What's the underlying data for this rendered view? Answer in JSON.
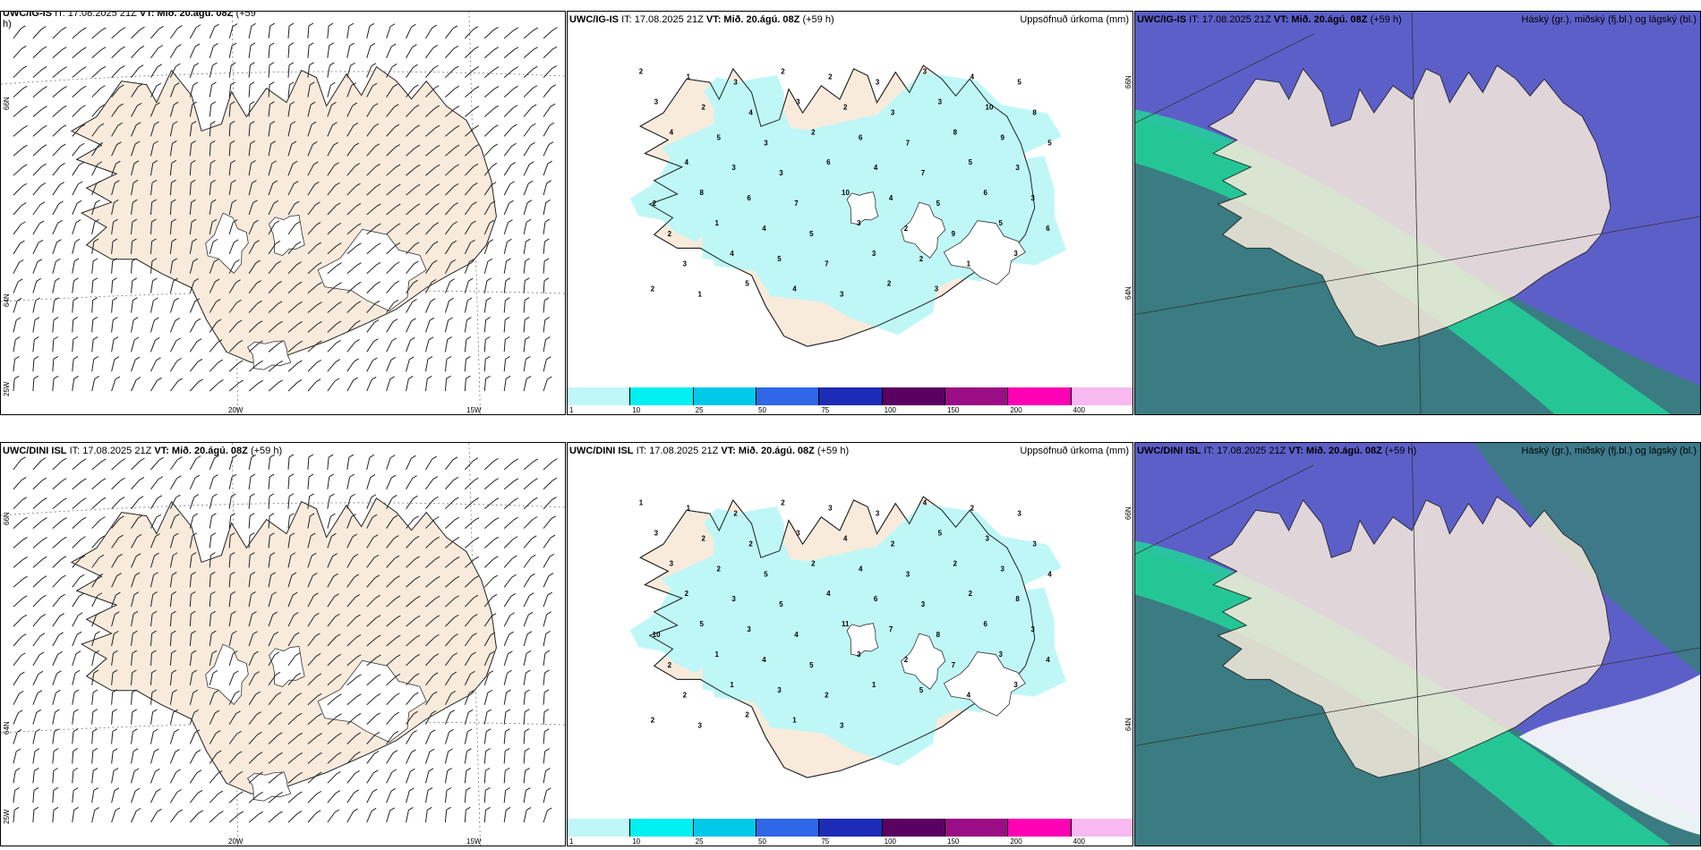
{
  "row1": {
    "wind": {
      "title_model": "UWC/IG-IS",
      "title_rest": "IT: 17.08.2025 21Z",
      "title_vt_label": "VT: Mið. 20.ágú. 08Z",
      "title_lead": "(+59",
      "title_lead2": "h)",
      "lat_66": "66N",
      "lat_64": "64N",
      "lon_25": "25W",
      "lon_20": "20W",
      "lon_15": "15W"
    },
    "precip": {
      "title_model": "UWC/IG-IS",
      "title_rest": "IT: 17.08.2025 21Z",
      "title_vt_label": "VT: Mið. 20.ágú. 08Z",
      "title_lead": "(+59 h)",
      "right_label": "Uppsöfnuð úrkoma (mm)",
      "lat_66": "66N",
      "lat_64": "64N",
      "colorbar": [
        "1",
        "10",
        "25",
        "50",
        "75",
        "100",
        "150",
        "200",
        "400"
      ]
    },
    "cloud": {
      "title_model": "UWC/IG-IS",
      "title_rest": "IT: 17.08.2025 21Z",
      "title_vt_label": "VT: Mið. 20.ágú. 08Z",
      "title_lead": "(+59 h)",
      "right_label": "Háský (gr.), miðský (fj.bl.) og lágský (bl.)"
    }
  },
  "row2": {
    "wind": {
      "title_model": "UWC/DINI ISL",
      "title_rest": "IT: 17.08.2025 21Z",
      "title_vt_label": "VT: Mið. 20.ágú. 08Z",
      "title_lead": "(+59 h)",
      "lat_66": "66N",
      "lat_64": "64N",
      "lon_25": "25W",
      "lon_20": "20W",
      "lon_15": "15W"
    },
    "precip": {
      "title_model": "UWC/DINI ISL",
      "title_rest": "IT: 17.08.2025 21Z",
      "title_vt_label": "VT: Mið. 20.ágú. 08Z",
      "title_lead": "(+59 h)",
      "right_label": "Uppsöfnuð úrkoma (mm)",
      "lat_66": "66N",
      "lat_64": "64N",
      "colorbar": [
        "1",
        "10",
        "25",
        "50",
        "75",
        "100",
        "150",
        "200",
        "400"
      ]
    },
    "cloud": {
      "title_model": "UWC/DINI ISL",
      "title_rest": "IT: 17.08.2025 21Z",
      "title_vt_label": "VT: Mið. 20.ágú. 08Z",
      "title_lead": "(+59 h)",
      "right_label": "Háský (gr.), miðský (fj.bl.) og lágský (bl.)"
    }
  },
  "precip_numbers_row1": [
    "2",
    "1",
    "3",
    "2",
    "2",
    "3",
    "3",
    "4",
    "5",
    "3",
    "2",
    "4",
    "3",
    "2",
    "3",
    "3",
    "10",
    "8",
    "4",
    "5",
    "3",
    "2",
    "6",
    "7",
    "8",
    "9",
    "5",
    "4",
    "3",
    "3",
    "6",
    "4",
    "7",
    "5",
    "3",
    "2",
    "8",
    "6",
    "7",
    "10",
    "4",
    "5",
    "6",
    "3",
    "2",
    "1",
    "4",
    "5",
    "3",
    "2",
    "9",
    "5",
    "6",
    "3",
    "4",
    "5",
    "7",
    "3",
    "2",
    "1",
    "3",
    "2",
    "1",
    "5",
    "4",
    "3",
    "2",
    "3"
  ],
  "precip_numbers_row2": [
    "1",
    "1",
    "2",
    "2",
    "3",
    "3",
    "4",
    "2",
    "3",
    "3",
    "2",
    "2",
    "3",
    "4",
    "2",
    "5",
    "3",
    "3",
    "3",
    "2",
    "5",
    "2",
    "4",
    "3",
    "2",
    "3",
    "4",
    "2",
    "3",
    "5",
    "4",
    "6",
    "3",
    "2",
    "8",
    "10",
    "5",
    "3",
    "4",
    "11",
    "7",
    "8",
    "6",
    "3",
    "2",
    "1",
    "4",
    "5",
    "3",
    "2",
    "7",
    "3",
    "4",
    "2",
    "1",
    "3",
    "2",
    "1",
    "5",
    "4",
    "3",
    "2",
    "3",
    "2",
    "1",
    "3"
  ],
  "colors": {
    "land": "#f8ebdc",
    "ice": "#ffffff",
    "precip_light": "#bff7f7",
    "cloud_low": "#5d5fc9",
    "cloud_mid": "#3a7c82",
    "cloud_high": "#22d39a",
    "sea": "#ffffff"
  },
  "colorbar_colors": [
    "#bff7f7",
    "#00f0f0",
    "#00c8e8",
    "#2e67e8",
    "#1d2cb8",
    "#5a0060",
    "#9b0d85",
    "#ff00b4",
    "#f8b8f0"
  ]
}
